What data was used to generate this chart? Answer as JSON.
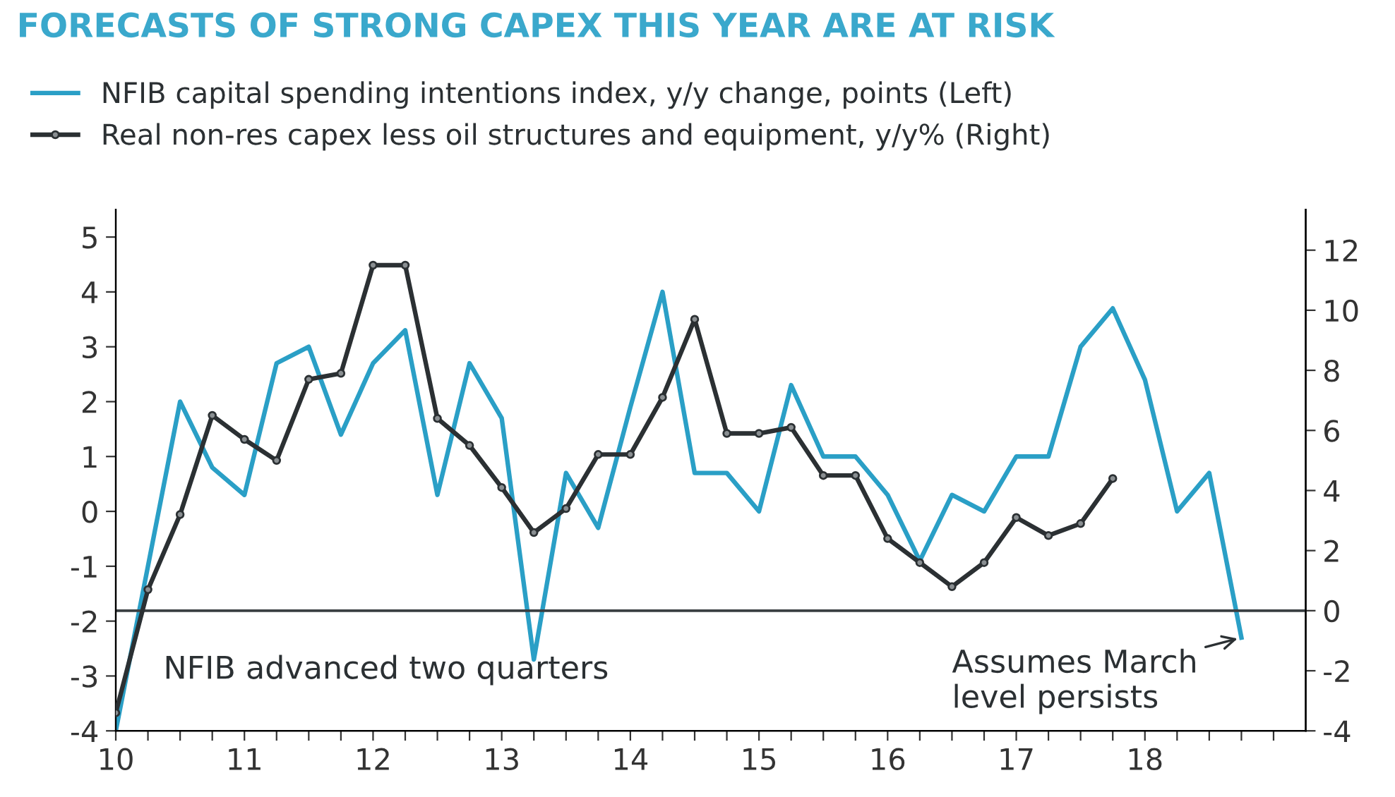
{
  "chart_data": {
    "type": "line",
    "title": "FORECASTS OF STRONG CAPEX THIS YEAR ARE AT RISK",
    "series": [
      {
        "name": "NFIB capital spending intentions index, y/y change, points (Left)",
        "color": "#2a9fc6",
        "marker": "none",
        "axis": "y",
        "x": [
          10.0,
          10.25,
          10.5,
          10.75,
          11.0,
          11.25,
          11.5,
          11.75,
          12.0,
          12.25,
          12.5,
          12.75,
          13.0,
          13.25,
          13.5,
          13.75,
          14.0,
          14.25,
          14.5,
          14.75,
          15.0,
          15.25,
          15.5,
          15.75,
          16.0,
          16.25,
          16.5,
          16.75,
          17.0,
          17.25,
          17.5,
          17.75,
          18.0,
          18.25,
          18.5,
          18.75
        ],
        "values": [
          -4.0,
          -1.0,
          2.0,
          0.8,
          0.3,
          2.7,
          3.0,
          1.4,
          2.7,
          3.3,
          0.3,
          2.7,
          1.7,
          -2.7,
          0.7,
          -0.3,
          1.9,
          4.0,
          0.7,
          0.7,
          0.0,
          2.3,
          1.0,
          1.0,
          0.3,
          -0.9,
          0.3,
          0.0,
          1.0,
          1.0,
          3.0,
          3.7,
          2.4,
          0.0,
          0.7,
          -2.3
        ]
      },
      {
        "name": "Real non-res capex less oil structures and equipment, y/y% (Right)",
        "color": "#2b3033",
        "marker": "circle",
        "axis": "y2",
        "x": [
          10.0,
          10.25,
          10.5,
          10.75,
          11.0,
          11.25,
          11.5,
          11.75,
          12.0,
          12.25,
          12.5,
          12.75,
          13.0,
          13.25,
          13.5,
          13.75,
          14.0,
          14.25,
          14.5,
          14.75,
          15.0,
          15.25,
          15.5,
          15.75,
          16.0,
          16.25,
          16.5,
          16.75,
          17.0,
          17.25,
          17.5,
          17.75
        ],
        "values": [
          -3.4,
          0.7,
          3.2,
          6.5,
          5.7,
          5.0,
          7.7,
          7.9,
          11.5,
          11.5,
          6.4,
          5.5,
          4.1,
          2.6,
          3.4,
          5.2,
          5.2,
          7.1,
          9.7,
          5.9,
          5.9,
          6.1,
          4.5,
          4.5,
          2.4,
          1.6,
          0.8,
          1.6,
          3.1,
          2.5,
          2.9,
          4.4
        ]
      }
    ],
    "xlim": [
      10,
      19.25
    ],
    "xticks": [
      10,
      {
        "value": 10.25,
        "label": null
      },
      {
        "value": 10.5,
        "label": null
      },
      {
        "value": 10.75,
        "label": null
      },
      11,
      {
        "value": 11.25,
        "label": null
      },
      {
        "value": 11.5,
        "label": null
      },
      {
        "value": 11.75,
        "label": null
      },
      12,
      {
        "value": 12.25,
        "label": null
      },
      {
        "value": 12.5,
        "label": null
      },
      {
        "value": 12.75,
        "label": null
      },
      13,
      {
        "value": 13.25,
        "label": null
      },
      {
        "value": 13.5,
        "label": null
      },
      {
        "value": 13.75,
        "label": null
      },
      14,
      {
        "value": 14.25,
        "label": null
      },
      {
        "value": 14.5,
        "label": null
      },
      {
        "value": 14.75,
        "label": null
      },
      15,
      {
        "value": 15.25,
        "label": null
      },
      {
        "value": 15.5,
        "label": null
      },
      {
        "value": 15.75,
        "label": null
      },
      16,
      {
        "value": 16.25,
        "label": null
      },
      {
        "value": 16.5,
        "label": null
      },
      {
        "value": 16.75,
        "label": null
      },
      17,
      {
        "value": 17.25,
        "label": null
      },
      {
        "value": 17.5,
        "label": null
      },
      {
        "value": 17.75,
        "label": null
      },
      18,
      {
        "value": 18.25,
        "label": null
      },
      {
        "value": 18.5,
        "label": null
      },
      {
        "value": 18.75,
        "label": null
      },
      {
        "value": 19,
        "label": null
      }
    ],
    "ylim": [
      -4,
      5.5
    ],
    "yticks": [
      -4,
      -3,
      -2,
      -1,
      0,
      1,
      2,
      3,
      4,
      5
    ],
    "y2lim": [
      -4,
      13.35
    ],
    "y2ticks": [
      -4,
      -2,
      0,
      2,
      4,
      6,
      8,
      10,
      12
    ],
    "ref_lines": [
      {
        "axis": "y2",
        "value": 0,
        "color": "#3a3f42"
      }
    ],
    "annotations": [
      "NFIB advanced two quarters",
      {
        "text": "Assumes March\nlevel persists",
        "x": 18.75,
        "y": -2.3
      }
    ],
    "legend": "top left",
    "grid": false,
    "line_style": "solid"
  }
}
